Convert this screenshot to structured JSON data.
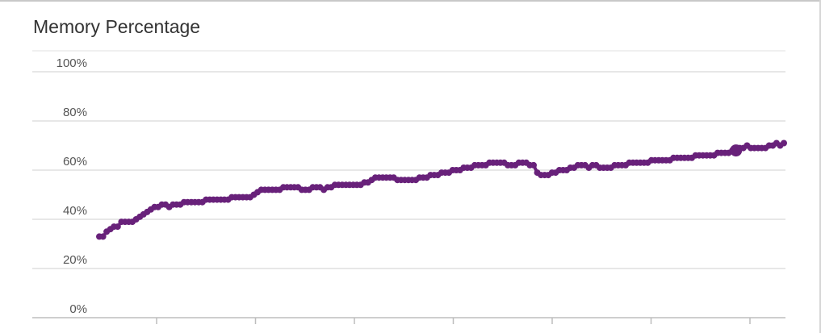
{
  "panel": {
    "title": "Memory Percentage"
  },
  "chart_data": {
    "type": "line",
    "title": "Memory Percentage",
    "xlabel": "",
    "ylabel": "",
    "ylim": [
      0,
      100
    ],
    "y_ticks": [
      {
        "value": 0,
        "label": "0%"
      },
      {
        "value": 20,
        "label": "20%"
      },
      {
        "value": 40,
        "label": "40%"
      },
      {
        "value": 60,
        "label": "60%"
      },
      {
        "value": 80,
        "label": "80%"
      },
      {
        "value": 100,
        "label": "100%"
      }
    ],
    "x_tick_count": 7,
    "grid": true,
    "legend": "none",
    "markers": true,
    "highlight_index": 173,
    "series": [
      {
        "color": "#68217a",
        "values": [
          33,
          33,
          35,
          36,
          37,
          37,
          39,
          39,
          39,
          39,
          40,
          41,
          42,
          43,
          44,
          45,
          45,
          46,
          46,
          45,
          46,
          46,
          46,
          47,
          47,
          47,
          47,
          47,
          47,
          48,
          48,
          48,
          48,
          48,
          48,
          48,
          49,
          49,
          49,
          49,
          49,
          49,
          50,
          51,
          52,
          52,
          52,
          52,
          52,
          52,
          53,
          53,
          53,
          53,
          53,
          52,
          52,
          52,
          53,
          53,
          53,
          52,
          53,
          53,
          54,
          54,
          54,
          54,
          54,
          54,
          54,
          54,
          55,
          55,
          56,
          57,
          57,
          57,
          57,
          57,
          57,
          56,
          56,
          56,
          56,
          56,
          56,
          57,
          57,
          57,
          58,
          58,
          58,
          59,
          59,
          59,
          60,
          60,
          60,
          61,
          61,
          61,
          62,
          62,
          62,
          62,
          63,
          63,
          63,
          63,
          63,
          62,
          62,
          62,
          63,
          63,
          63,
          62,
          62,
          59,
          58,
          58,
          58,
          59,
          59,
          60,
          60,
          60,
          61,
          61,
          62,
          62,
          62,
          61,
          62,
          62,
          61,
          61,
          61,
          61,
          62,
          62,
          62,
          62,
          63,
          63,
          63,
          63,
          63,
          63,
          64,
          64,
          64,
          64,
          64,
          64,
          65,
          65,
          65,
          65,
          65,
          65,
          66,
          66,
          66,
          66,
          66,
          66,
          67,
          67,
          67,
          67,
          68,
          68,
          69,
          69,
          70,
          69,
          69,
          69,
          69,
          69,
          70,
          70,
          71,
          70,
          71
        ]
      }
    ]
  }
}
